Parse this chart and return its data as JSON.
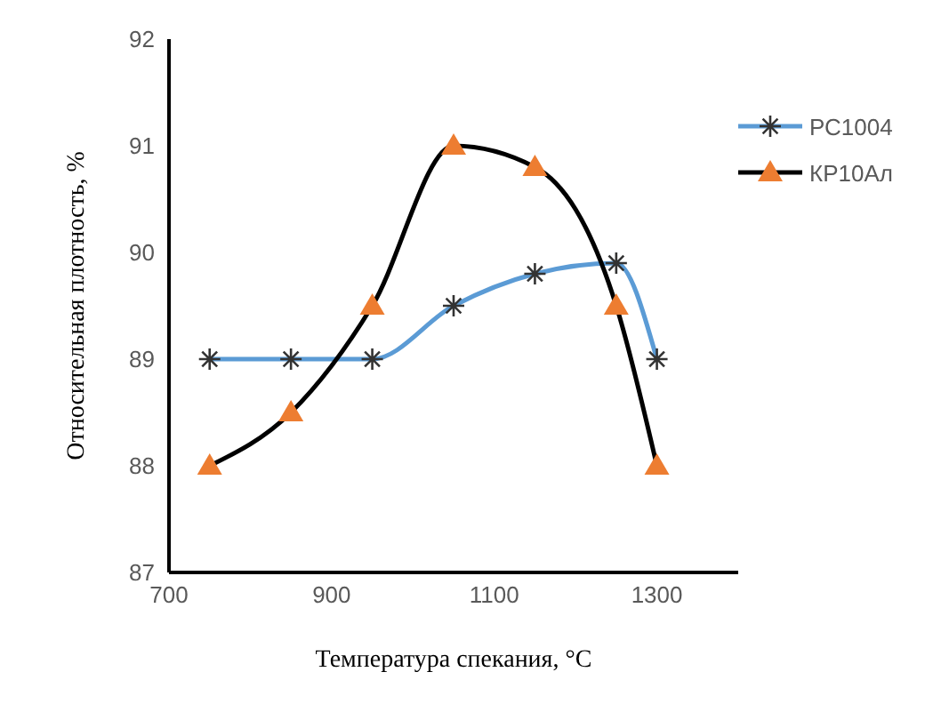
{
  "chart_data": {
    "type": "line",
    "xlabel": "Температура спекания, °C",
    "ylabel": "Относительная плотность, %",
    "x": [
      750,
      850,
      950,
      1050,
      1150,
      1250,
      1300
    ],
    "series": [
      {
        "name": "РС1004",
        "color": "#5b9bd5",
        "marker": "cross",
        "colors": [
          "#333333",
          "#333333",
          "#333333",
          "#333333",
          "#333333",
          "#333333",
          "#333333"
        ],
        "values": [
          89,
          89,
          89,
          89.5,
          89.8,
          89.9,
          89
        ]
      },
      {
        "name": "КР10Ал",
        "color": "#000000",
        "marker": "triangle",
        "colors": [
          "#ed7d31",
          "#ed7d31",
          "#ed7d31",
          "#ed7d31",
          "#ed7d31",
          "#ed7d31",
          "#ed7d31"
        ],
        "values": [
          88,
          88.5,
          89.5,
          91,
          90.8,
          89.5,
          88
        ]
      }
    ],
    "xlim": [
      700,
      1400
    ],
    "xticks": [
      700,
      900,
      1100,
      1300
    ],
    "ylim": [
      87,
      92
    ],
    "yticks": [
      87,
      88,
      89,
      90,
      91,
      92
    ],
    "grid": false,
    "legend": "top right"
  }
}
